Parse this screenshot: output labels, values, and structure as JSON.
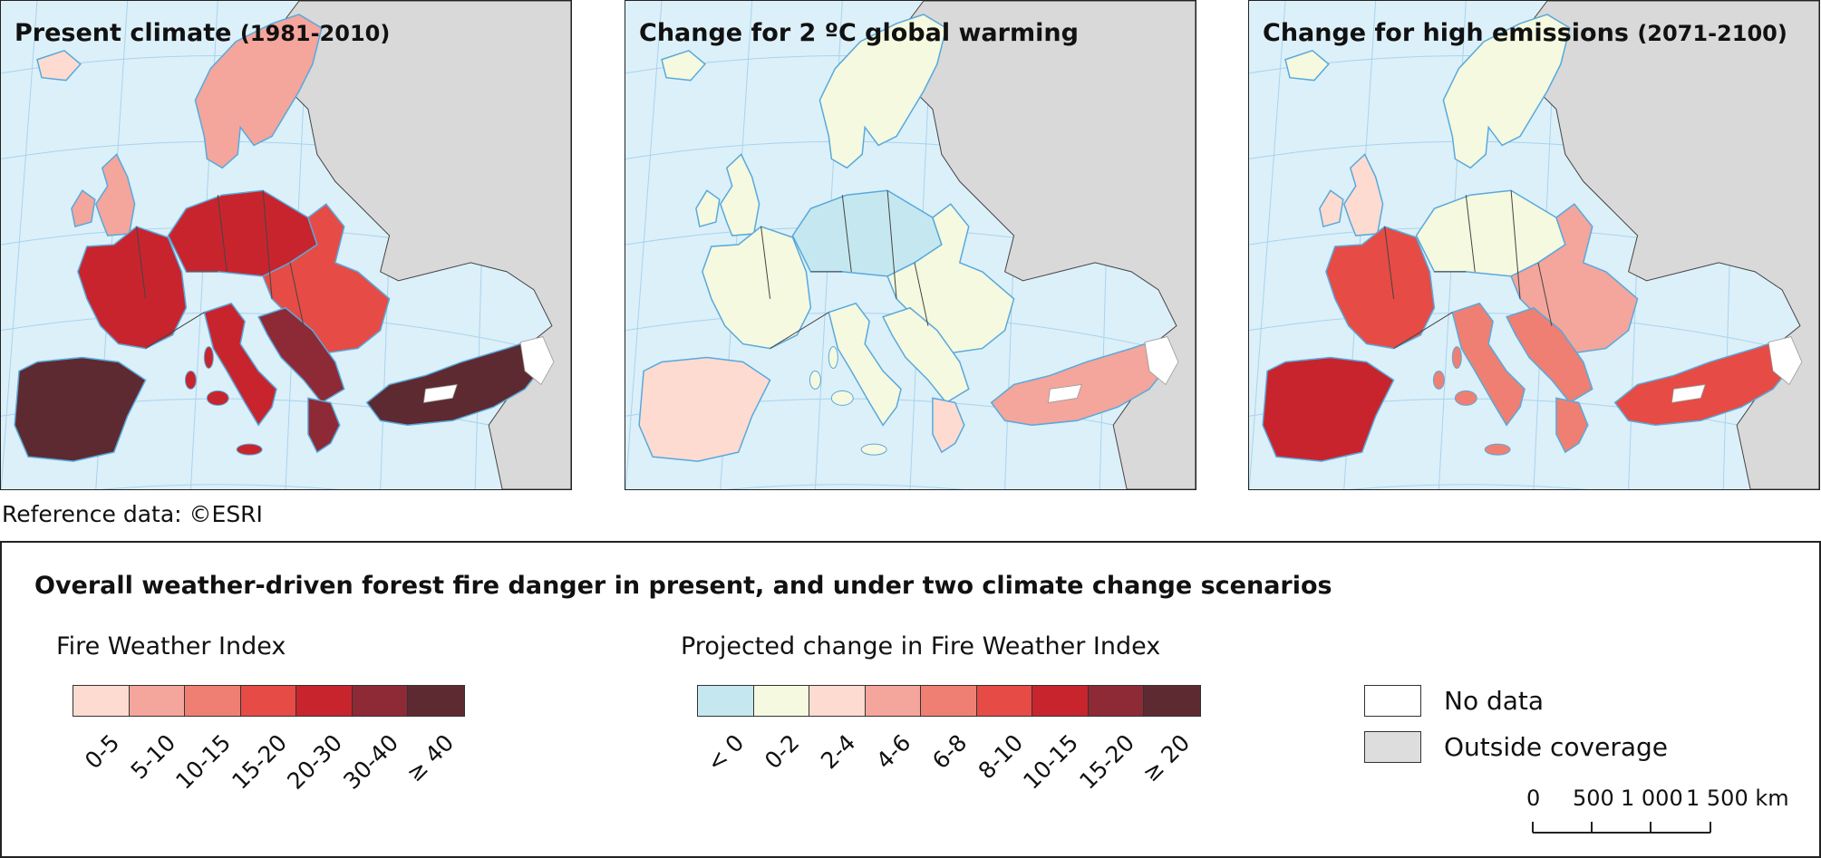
{
  "maps": [
    {
      "title": "Present climate",
      "subtitle": "(1981-2010)",
      "scheme": "present"
    },
    {
      "title": "Change for 2 ºC global warming",
      "subtitle": "",
      "scheme": "change2"
    },
    {
      "title": "Change for high emissions",
      "subtitle": "(2071-2100)",
      "scheme": "highemis"
    }
  ],
  "reference": "Reference data: ©ESRI",
  "legend": {
    "title": "Overall weather-driven forest fire danger in present, and under two climate change scenarios",
    "fwi": {
      "title": "Fire Weather Index",
      "classes": [
        {
          "label": "0-5",
          "color": "#fddbd0"
        },
        {
          "label": "5-10",
          "color": "#f4a59c"
        },
        {
          "label": "10-15",
          "color": "#ef7f72"
        },
        {
          "label": "15-20",
          "color": "#e64b45"
        },
        {
          "label": "20-30",
          "color": "#c8242e"
        },
        {
          "label": "30-40",
          "color": "#8e2a36"
        },
        {
          "label": "≥ 40",
          "color": "#5e2a31"
        }
      ]
    },
    "change": {
      "title": "Projected change in Fire Weather Index",
      "classes": [
        {
          "label": "< 0",
          "color": "#c5e8f0"
        },
        {
          "label": "0-2",
          "color": "#f5f9df"
        },
        {
          "label": "2-4",
          "color": "#fddbd0"
        },
        {
          "label": "4-6",
          "color": "#f4a59c"
        },
        {
          "label": "6-8",
          "color": "#ef7f72"
        },
        {
          "label": "8-10",
          "color": "#e64b45"
        },
        {
          "label": "10-15",
          "color": "#c8242e"
        },
        {
          "label": "15-20",
          "color": "#8e2a36"
        },
        {
          "label": "≥ 20",
          "color": "#5e2a31"
        }
      ]
    },
    "keys": [
      {
        "label": "No data",
        "color": "#ffffff"
      },
      {
        "label": "Outside coverage",
        "color": "#dddddd"
      }
    ],
    "scalebar": {
      "labels": [
        "0",
        "500",
        "1 000",
        "1 500 km"
      ]
    }
  },
  "colors": {
    "sea": "#dcf0fa",
    "outside": "#d9d9d9",
    "coast": "#58a9dc",
    "border": "#444444"
  }
}
